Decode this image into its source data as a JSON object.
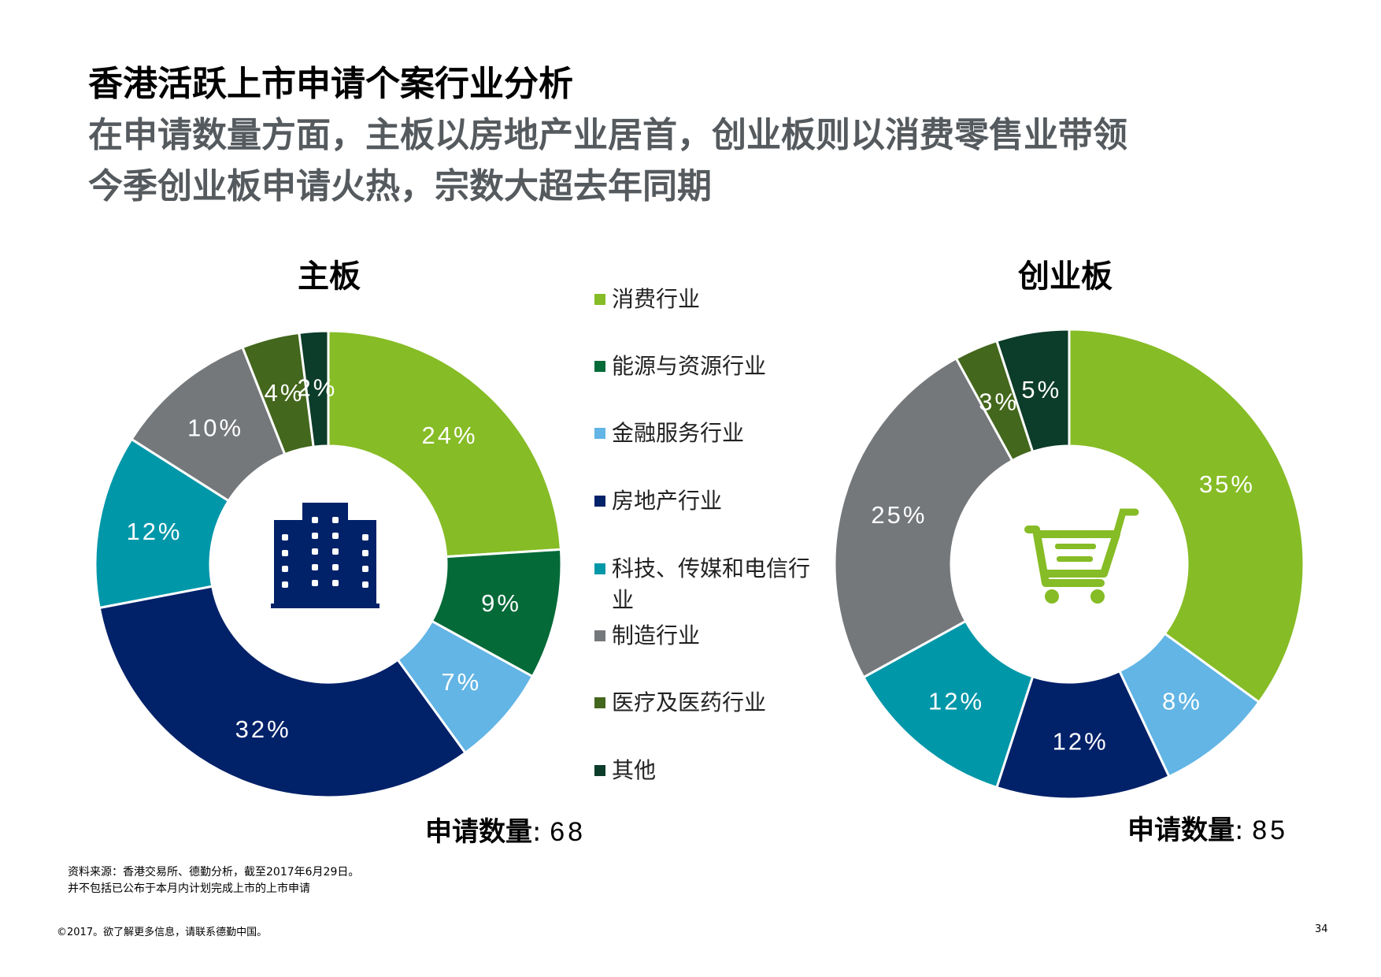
{
  "header": {
    "title": "香港活跃上市申请个案行业分析",
    "subtitle_line1": "在申请数量方面，主板以房地产业居首，创业板则以消费零售业带领",
    "subtitle_line2": "今季创业板申请火热，宗数大超去年同期"
  },
  "legend": {
    "items": [
      {
        "label": "消费行业",
        "color": "#86bc25"
      },
      {
        "label": "能源与资源行业",
        "color": "#046a38"
      },
      {
        "label": "金融服务行业",
        "color": "#62b5e5"
      },
      {
        "label": "房地产行业",
        "color": "#012169"
      },
      {
        "label": "科技、传媒和电信行业",
        "color": "#0097a9"
      },
      {
        "label": "制造行业",
        "color": "#75787b"
      },
      {
        "label": "医疗及医药行业",
        "color": "#43b02a"
      },
      {
        "label": "其他",
        "color": "#0c3c2a"
      }
    ]
  },
  "chart_data": [
    {
      "type": "pie",
      "title": "主板",
      "center_icon": "building-icon",
      "count_label": "申请数量",
      "count_value": "68",
      "slices": [
        {
          "label": "消费行业",
          "value": 24,
          "text": "24%",
          "color": "#86bc25",
          "text_color": "#ffffff"
        },
        {
          "label": "能源与资源行业",
          "value": 9,
          "text": "9%",
          "color": "#046a38",
          "text_color": "#ffffff"
        },
        {
          "label": "金融服务行业",
          "value": 7,
          "text": "7%",
          "color": "#62b5e5",
          "text_color": "#ffffff"
        },
        {
          "label": "房地产行业",
          "value": 32,
          "text": "32%",
          "color": "#012169",
          "text_color": "#ffffff"
        },
        {
          "label": "科技、传媒和电信行业",
          "value": 12,
          "text": "12%",
          "color": "#0097a9",
          "text_color": "#ffffff"
        },
        {
          "label": "制造行业",
          "value": 10,
          "text": "10%",
          "color": "#75787b",
          "text_color": "#ffffff"
        },
        {
          "label": "医疗及医药行业",
          "value": 4,
          "text": "4%",
          "color": "#43671c",
          "text_color": "#ffffff"
        },
        {
          "label": "其他",
          "value": 2,
          "text": "2%",
          "color": "#0c3c2a",
          "text_color": "#ffffff"
        }
      ]
    },
    {
      "type": "pie",
      "title": "创业板",
      "center_icon": "shopping-cart-icon",
      "count_label": "申请数量",
      "count_value": "85",
      "slices": [
        {
          "label": "消费行业",
          "value": 35,
          "text": "35%",
          "color": "#86bc25",
          "text_color": "#ffffff"
        },
        {
          "label": "金融服务行业",
          "value": 8,
          "text": "8%",
          "color": "#62b5e5",
          "text_color": "#ffffff"
        },
        {
          "label": "房地产行业",
          "value": 12,
          "text": "12%",
          "color": "#012169",
          "text_color": "#ffffff"
        },
        {
          "label": "科技、传媒和电信行业",
          "value": 12,
          "text": "12%",
          "color": "#0097a9",
          "text_color": "#ffffff"
        },
        {
          "label": "制造行业",
          "value": 25,
          "text": "25%",
          "color": "#75787b",
          "text_color": "#ffffff"
        },
        {
          "label": "医疗及医药行业",
          "value": 3,
          "text": "3%",
          "color": "#43671c",
          "text_color": "#ffffff"
        },
        {
          "label": "其他",
          "value": 5,
          "text": "5%",
          "color": "#0c3c2a",
          "text_color": "#ffffff"
        }
      ]
    }
  ],
  "notes": {
    "source": "资料来源：香港交易所、德勤分析，截至2017年6月29日。",
    "exclusion": "并不包括已公布于本月内计划完成上市的上市申请"
  },
  "footer": {
    "copyright": "©2017。欲了解更多信息，请联系德勤中国。",
    "page_number": "34"
  }
}
